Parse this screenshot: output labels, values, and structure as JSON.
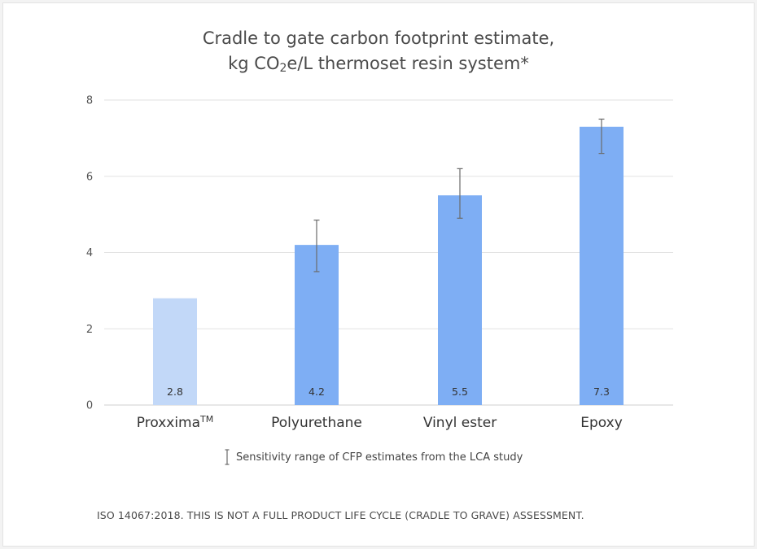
{
  "chart_data": {
    "type": "bar",
    "title_line1": "Cradle to gate carbon footprint estimate,",
    "title_line2_prefix": "kg CO",
    "title_line2_sub": "2",
    "title_line2_suffix": "e/L thermoset resin system*",
    "categories": [
      "Proxxima",
      "Polyurethane",
      "Vinyl ester",
      "Epoxy"
    ],
    "category_superscripts": [
      "TM",
      "",
      "",
      ""
    ],
    "values": [
      2.8,
      4.2,
      5.5,
      7.3
    ],
    "value_labels": [
      "2.8",
      "4.2",
      "5.5",
      "7.3"
    ],
    "error_ranges": [
      null,
      [
        3.5,
        4.85
      ],
      [
        4.9,
        6.2
      ],
      [
        6.6,
        7.5
      ]
    ],
    "bar_colors": [
      "#c2d8f8",
      "#7eaef4",
      "#7eaef4",
      "#7eaef4"
    ],
    "yticks": [
      "0",
      "2",
      "4",
      "6",
      "8"
    ],
    "ylim": [
      0,
      8
    ],
    "grid": true
  },
  "legend": {
    "sensitivity_label": "Sensitivity range of CFP estimates from the LCA study"
  },
  "footnote": "ISO 14067:2018. THIS IS NOT A FULL PRODUCT LIFE CYCLE (CRADLE TO GRAVE) ASSESSMENT."
}
